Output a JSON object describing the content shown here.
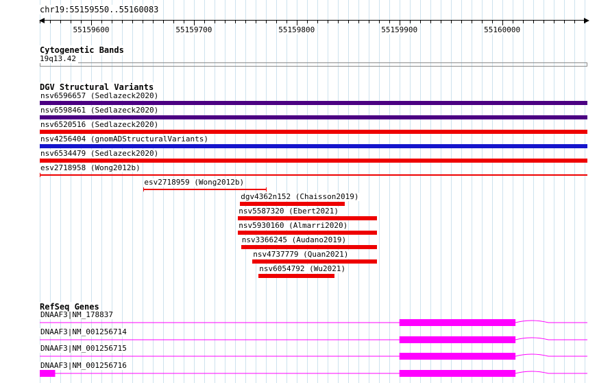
{
  "meta": {
    "region_title": "chr19:55159550..55160083",
    "region_start": 55159550,
    "region_end": 55160083
  },
  "ruler": {
    "major_ticks": [
      55159600,
      55159700,
      55159800,
      55159900,
      55160000
    ],
    "minor_interval": 10
  },
  "cytobands": {
    "title": "Cytogenetic Bands",
    "band_label": "19q13.42"
  },
  "variants": {
    "title": "DGV Structural Variants",
    "items": [
      {
        "id": "nsv6596657",
        "study": "Sedlazeck2020",
        "label": "nsv6596657 (Sedlazeck2020)",
        "start": 55159550,
        "end": 55160083,
        "glyph": "box",
        "color": "purple"
      },
      {
        "id": "nsv6598461",
        "study": "Sedlazeck2020",
        "label": "nsv6598461 (Sedlazeck2020)",
        "start": 55159550,
        "end": 55160083,
        "glyph": "box",
        "color": "purple"
      },
      {
        "id": "nsv6520516",
        "study": "Sedlazeck2020",
        "label": "nsv6520516 (Sedlazeck2020)",
        "start": 55159550,
        "end": 55160083,
        "glyph": "box",
        "color": "red"
      },
      {
        "id": "nsv4256404",
        "study": "gnomADStructuralVariants",
        "label": "nsv4256404 (gnomADStructuralVariants)",
        "start": 55159550,
        "end": 55160083,
        "glyph": "box",
        "color": "blue"
      },
      {
        "id": "nsv6534479",
        "study": "Sedlazeck2020",
        "label": "nsv6534479 (Sedlazeck2020)",
        "start": 55159550,
        "end": 55160083,
        "glyph": "box",
        "color": "red"
      },
      {
        "id": "esv2718958",
        "study": "Wong2012b",
        "label": "esv2718958 (Wong2012b)",
        "start": 55159550,
        "end": 55160083,
        "glyph": "line",
        "color": "red",
        "caps": [
          "left"
        ]
      },
      {
        "id": "esv2718959",
        "study": "Wong2012b",
        "label": "esv2718959 (Wong2012b)",
        "start": 55159651,
        "end": 55159771,
        "glyph": "line",
        "color": "red",
        "caps": [
          "left",
          "right"
        ]
      },
      {
        "id": "dgv4362n152",
        "study": "Chaisson2019",
        "label": "dgv4362n152 (Chaisson2019)",
        "start": 55159745,
        "end": 55159847,
        "glyph": "box",
        "color": "red"
      },
      {
        "id": "nsv5587320",
        "study": "Ebert2021",
        "label": "nsv5587320 (Ebert2021)",
        "start": 55159743,
        "end": 55159878,
        "glyph": "box",
        "color": "red"
      },
      {
        "id": "nsv5930160",
        "study": "Almarri2020",
        "label": "nsv5930160 (Almarri2020)",
        "start": 55159743,
        "end": 55159878,
        "glyph": "box",
        "color": "red"
      },
      {
        "id": "nsv3366245",
        "study": "Audano2019",
        "label": "nsv3366245 (Audano2019)",
        "start": 55159746,
        "end": 55159878,
        "glyph": "box",
        "color": "red"
      },
      {
        "id": "nsv4737779",
        "study": "Quan2021",
        "label": "nsv4737779 (Quan2021)",
        "start": 55159757,
        "end": 55159878,
        "glyph": "box",
        "color": "red"
      },
      {
        "id": "nsv6054792",
        "study": "Wu2021",
        "label": "nsv6054792 (Wu2021)",
        "start": 55159763,
        "end": 55159837,
        "glyph": "box",
        "color": "red"
      }
    ]
  },
  "genes": {
    "title": "RefSeq Genes",
    "items": [
      {
        "label": "DNAAF3|NM_178837",
        "line_start": 55159550,
        "line_end": 55160083,
        "exons": [
          [
            55159900,
            55160013
          ]
        ]
      },
      {
        "label": "DNAAF3|NM_001256714",
        "line_start": 55159550,
        "line_end": 55160083,
        "exons": [
          [
            55159900,
            55160013
          ]
        ]
      },
      {
        "label": "DNAAF3|NM_001256715",
        "line_start": 55159550,
        "line_end": 55160083,
        "exons": [
          [
            55159900,
            55160013
          ]
        ]
      },
      {
        "label": "DNAAF3|NM_001256716",
        "line_start": 55159550,
        "line_end": 55160083,
        "exons": [
          [
            55159550,
            55159565
          ],
          [
            55159900,
            55160013
          ]
        ]
      }
    ]
  },
  "colors": {
    "purple": "#4b0082",
    "red": "#ee0000",
    "blue": "#1515cc",
    "magenta": "#ff00ff",
    "grid": "#cde2ee"
  }
}
